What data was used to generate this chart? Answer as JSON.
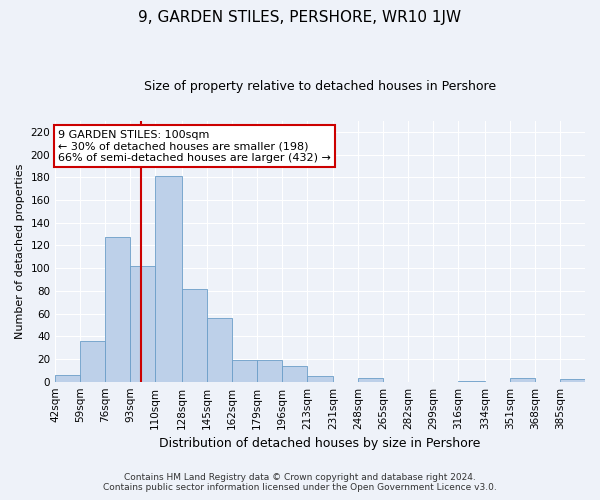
{
  "title": "9, GARDEN STILES, PERSHORE, WR10 1JW",
  "subtitle": "Size of property relative to detached houses in Pershore",
  "xlabel": "Distribution of detached houses by size in Pershore",
  "ylabel": "Number of detached properties",
  "bin_labels": [
    "42sqm",
    "59sqm",
    "76sqm",
    "93sqm",
    "110sqm",
    "128sqm",
    "145sqm",
    "162sqm",
    "179sqm",
    "196sqm",
    "213sqm",
    "231sqm",
    "248sqm",
    "265sqm",
    "282sqm",
    "299sqm",
    "316sqm",
    "334sqm",
    "351sqm",
    "368sqm",
    "385sqm"
  ],
  "bar_heights": [
    6,
    36,
    127,
    102,
    181,
    82,
    56,
    19,
    19,
    14,
    5,
    0,
    3,
    0,
    0,
    0,
    1,
    0,
    3,
    0,
    2
  ],
  "bar_color": "#bdd0e9",
  "bar_edge_color": "#6b9ec8",
  "vline_x": 100,
  "vline_color": "#cc0000",
  "ylim": [
    0,
    230
  ],
  "yticks": [
    0,
    20,
    40,
    60,
    80,
    100,
    120,
    140,
    160,
    180,
    200,
    220
  ],
  "bin_edges": [
    42,
    59,
    76,
    93,
    110,
    128,
    145,
    162,
    179,
    196,
    213,
    231,
    248,
    265,
    282,
    299,
    316,
    334,
    351,
    368,
    385,
    402
  ],
  "annotation_title": "9 GARDEN STILES: 100sqm",
  "annotation_line1": "← 30% of detached houses are smaller (198)",
  "annotation_line2": "66% of semi-detached houses are larger (432) →",
  "annotation_box_color": "#cc0000",
  "footer_line1": "Contains HM Land Registry data © Crown copyright and database right 2024.",
  "footer_line2": "Contains public sector information licensed under the Open Government Licence v3.0.",
  "bg_color": "#eef2f9",
  "grid_color": "#ffffff",
  "title_fontsize": 11,
  "subtitle_fontsize": 9,
  "ylabel_fontsize": 8,
  "xlabel_fontsize": 9,
  "tick_fontsize": 7.5,
  "annot_fontsize": 8,
  "footer_fontsize": 6.5
}
